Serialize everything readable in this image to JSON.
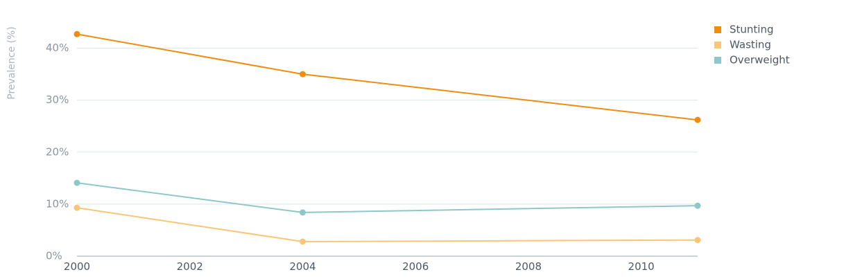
{
  "chart_data": {
    "type": "line",
    "title": "",
    "ylabel": "Prevalence (%)",
    "xlabel": "",
    "x_ticks": [
      "2000",
      "2002",
      "2004",
      "2006",
      "2008",
      "2010"
    ],
    "y_ticks": [
      "0%",
      "10%",
      "20%",
      "30%",
      "40%"
    ],
    "xlim": [
      2000,
      2011
    ],
    "ylim": [
      0,
      45
    ],
    "grid": true,
    "legend_position": "top-right",
    "series": [
      {
        "name": "Stunting",
        "color": "#ee8d0f",
        "points": [
          {
            "x": 2000,
            "y": 42.7
          },
          {
            "x": 2004,
            "y": 35.0
          },
          {
            "x": 2011,
            "y": 26.2
          }
        ]
      },
      {
        "name": "Wasting",
        "color": "#f9c677",
        "points": [
          {
            "x": 2000,
            "y": 9.3
          },
          {
            "x": 2004,
            "y": 2.8
          },
          {
            "x": 2011,
            "y": 3.1
          }
        ]
      },
      {
        "name": "Overweight",
        "color": "#8ec7c7",
        "points": [
          {
            "x": 2000,
            "y": 14.1
          },
          {
            "x": 2004,
            "y": 8.4
          },
          {
            "x": 2011,
            "y": 9.7
          }
        ]
      }
    ]
  }
}
